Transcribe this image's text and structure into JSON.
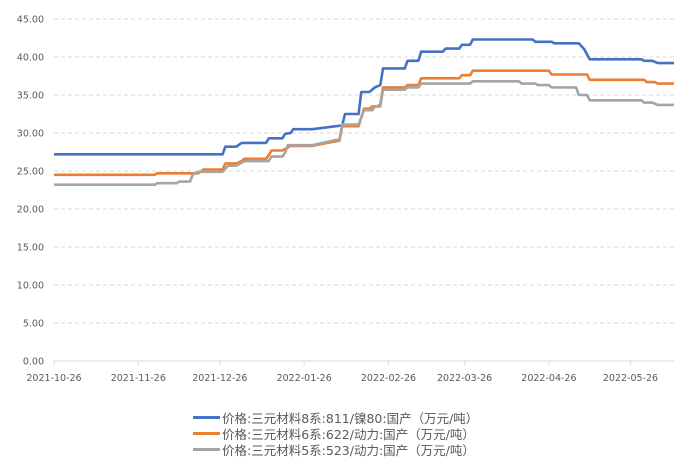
{
  "chart_data": {
    "type": "line",
    "title": "",
    "xlabel": "",
    "ylabel": "",
    "ylim": [
      0,
      45
    ],
    "yticks": [
      "0.00",
      "5.00",
      "10.00",
      "15.00",
      "20.00",
      "25.00",
      "30.00",
      "35.00",
      "40.00",
      "45.00"
    ],
    "xlim": [
      "2021-10-26",
      "2022-06-11"
    ],
    "xticks": [
      "2021-10-26",
      "2021-11-26",
      "2021-12-26",
      "2022-01-26",
      "2022-02-26",
      "2022-03-26",
      "2022-04-26",
      "2022-05-26"
    ],
    "grid": "horizontal dashed",
    "legend_position": "bottom",
    "series": [
      {
        "name": "价格:三元材料8系:811/镍80:国产（万元/吨）",
        "color": "#4472C4",
        "points": [
          [
            "2021-10-26",
            27.2
          ],
          [
            "2021-12-27",
            27.2
          ],
          [
            "2021-12-28",
            28.2
          ],
          [
            "2022-01-01",
            28.2
          ],
          [
            "2022-01-03",
            28.7
          ],
          [
            "2022-01-12",
            28.7
          ],
          [
            "2022-01-13",
            29.3
          ],
          [
            "2022-01-18",
            29.3
          ],
          [
            "2022-01-19",
            29.9
          ],
          [
            "2022-01-21",
            30.0
          ],
          [
            "2022-01-22",
            30.5
          ],
          [
            "2022-01-29",
            30.5
          ],
          [
            "2022-02-09",
            31.0
          ],
          [
            "2022-02-10",
            32.5
          ],
          [
            "2022-02-15",
            32.5
          ],
          [
            "2022-02-16",
            35.4
          ],
          [
            "2022-02-19",
            35.4
          ],
          [
            "2022-02-21",
            36.0
          ],
          [
            "2022-02-23",
            36.3
          ],
          [
            "2022-02-24",
            38.5
          ],
          [
            "2022-03-04",
            38.5
          ],
          [
            "2022-03-05",
            39.5
          ],
          [
            "2022-03-09",
            39.5
          ],
          [
            "2022-03-10",
            40.7
          ],
          [
            "2022-03-18",
            40.7
          ],
          [
            "2022-03-19",
            41.1
          ],
          [
            "2022-03-24",
            41.1
          ],
          [
            "2022-03-25",
            41.6
          ],
          [
            "2022-03-28",
            41.6
          ],
          [
            "2022-03-29",
            42.3
          ],
          [
            "2022-04-20",
            42.3
          ],
          [
            "2022-04-21",
            42.0
          ],
          [
            "2022-04-27",
            42.0
          ],
          [
            "2022-04-28",
            41.8
          ],
          [
            "2022-05-07",
            41.8
          ],
          [
            "2022-05-09",
            41.0
          ],
          [
            "2022-05-11",
            39.7
          ],
          [
            "2022-05-30",
            39.7
          ],
          [
            "2022-05-31",
            39.5
          ],
          [
            "2022-06-03",
            39.5
          ],
          [
            "2022-06-05",
            39.2
          ],
          [
            "2022-06-11",
            39.2
          ]
        ]
      },
      {
        "name": "价格:三元材料6系:622/动力:国产（万元/吨）",
        "color": "#ED7D31",
        "points": [
          [
            "2021-10-26",
            24.5
          ],
          [
            "2021-12-02",
            24.5
          ],
          [
            "2021-12-03",
            24.7
          ],
          [
            "2021-12-18",
            24.7
          ],
          [
            "2021-12-20",
            25.2
          ],
          [
            "2021-12-27",
            25.2
          ],
          [
            "2021-12-28",
            26.0
          ],
          [
            "2022-01-01",
            26.0
          ],
          [
            "2022-01-03",
            26.3
          ],
          [
            "2022-01-04",
            26.6
          ],
          [
            "2022-01-12",
            26.6
          ],
          [
            "2022-01-13",
            27.1
          ],
          [
            "2022-01-14",
            27.7
          ],
          [
            "2022-01-18",
            27.7
          ],
          [
            "2022-01-20",
            28.1
          ],
          [
            "2022-01-21",
            28.3
          ],
          [
            "2022-01-29",
            28.3
          ],
          [
            "2022-02-08",
            29.0
          ],
          [
            "2022-02-09",
            30.9
          ],
          [
            "2022-02-15",
            30.9
          ],
          [
            "2022-02-17",
            33.2
          ],
          [
            "2022-02-19",
            33.2
          ],
          [
            "2022-02-20",
            33.5
          ],
          [
            "2022-02-22",
            33.5
          ],
          [
            "2022-02-23",
            33.8
          ],
          [
            "2022-02-24",
            36.0
          ],
          [
            "2022-03-04",
            36.0
          ],
          [
            "2022-03-05",
            36.3
          ],
          [
            "2022-03-09",
            36.3
          ],
          [
            "2022-03-10",
            37.2
          ],
          [
            "2022-03-24",
            37.2
          ],
          [
            "2022-03-25",
            37.6
          ],
          [
            "2022-03-28",
            37.6
          ],
          [
            "2022-03-29",
            38.2
          ],
          [
            "2022-04-26",
            38.2
          ],
          [
            "2022-04-27",
            37.7
          ],
          [
            "2022-05-10",
            37.7
          ],
          [
            "2022-05-11",
            37.0
          ],
          [
            "2022-05-31",
            37.0
          ],
          [
            "2022-06-01",
            36.7
          ],
          [
            "2022-06-04",
            36.7
          ],
          [
            "2022-06-05",
            36.5
          ],
          [
            "2022-06-11",
            36.5
          ]
        ]
      },
      {
        "name": "价格:三元材料5系:523/动力:国产（万元/吨）",
        "color": "#A5A5A5",
        "points": [
          [
            "2021-10-26",
            23.2
          ],
          [
            "2021-12-02",
            23.2
          ],
          [
            "2021-12-03",
            23.4
          ],
          [
            "2021-12-10",
            23.4
          ],
          [
            "2021-12-11",
            23.6
          ],
          [
            "2021-12-15",
            23.6
          ],
          [
            "2021-12-16",
            24.5
          ],
          [
            "2021-12-18",
            24.9
          ],
          [
            "2021-12-27",
            24.9
          ],
          [
            "2021-12-29",
            25.7
          ],
          [
            "2022-01-01",
            25.7
          ],
          [
            "2022-01-04",
            26.3
          ],
          [
            "2022-01-13",
            26.3
          ],
          [
            "2022-01-14",
            26.9
          ],
          [
            "2022-01-18",
            26.9
          ],
          [
            "2022-01-19",
            27.4
          ],
          [
            "2022-01-20",
            28.4
          ],
          [
            "2022-01-29",
            28.4
          ],
          [
            "2022-02-08",
            29.2
          ],
          [
            "2022-02-09",
            31.1
          ],
          [
            "2022-02-15",
            31.1
          ],
          [
            "2022-02-17",
            33.0
          ],
          [
            "2022-02-20",
            33.0
          ],
          [
            "2022-02-21",
            33.5
          ],
          [
            "2022-02-23",
            33.5
          ],
          [
            "2022-02-24",
            35.7
          ],
          [
            "2022-03-04",
            35.7
          ],
          [
            "2022-03-05",
            36.0
          ],
          [
            "2022-03-09",
            36.0
          ],
          [
            "2022-03-10",
            36.5
          ],
          [
            "2022-03-28",
            36.5
          ],
          [
            "2022-03-29",
            36.8
          ],
          [
            "2022-04-15",
            36.8
          ],
          [
            "2022-04-16",
            36.5
          ],
          [
            "2022-04-21",
            36.5
          ],
          [
            "2022-04-22",
            36.3
          ],
          [
            "2022-04-26",
            36.3
          ],
          [
            "2022-04-27",
            36.0
          ],
          [
            "2022-05-06",
            36.0
          ],
          [
            "2022-05-07",
            35.0
          ],
          [
            "2022-05-10",
            35.0
          ],
          [
            "2022-05-11",
            34.3
          ],
          [
            "2022-05-30",
            34.3
          ],
          [
            "2022-05-31",
            34.0
          ],
          [
            "2022-06-03",
            34.0
          ],
          [
            "2022-06-05",
            33.7
          ],
          [
            "2022-06-11",
            33.7
          ]
        ]
      }
    ]
  }
}
